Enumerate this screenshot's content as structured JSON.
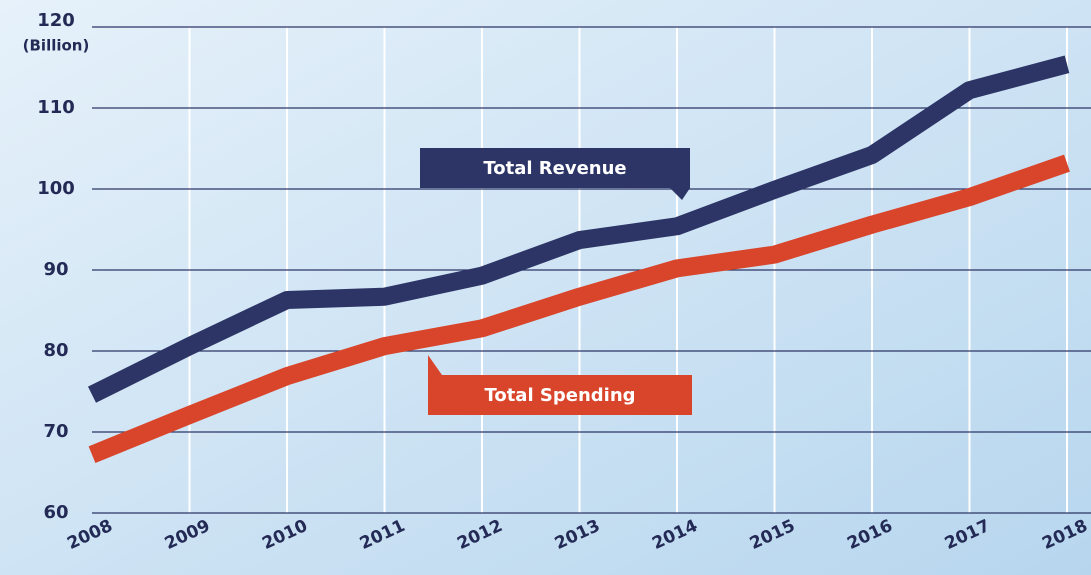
{
  "chart_data": {
    "type": "line",
    "y_label": "(Billion)",
    "categories": [
      "2008",
      "2009",
      "2010",
      "2011",
      "2012",
      "2013",
      "2014",
      "2015",
      "2016",
      "2017",
      "2018"
    ],
    "series": [
      {
        "name": "Total Revenue",
        "color": "#2c3566",
        "values": [
          74.6,
          80.6,
          86.3,
          86.7,
          89.3,
          93.7,
          95.4,
          99.9,
          104.2,
          112.2,
          115.4
        ]
      },
      {
        "name": "Total Spending",
        "color": "#d9452a",
        "values": [
          67.2,
          72.1,
          76.9,
          80.6,
          82.8,
          86.7,
          90.2,
          91.9,
          95.6,
          99.0,
          103.2
        ]
      }
    ],
    "ylim": [
      60,
      120
    ],
    "yticks": [
      60,
      70,
      80,
      90,
      100,
      110,
      120
    ],
    "grid": true
  }
}
